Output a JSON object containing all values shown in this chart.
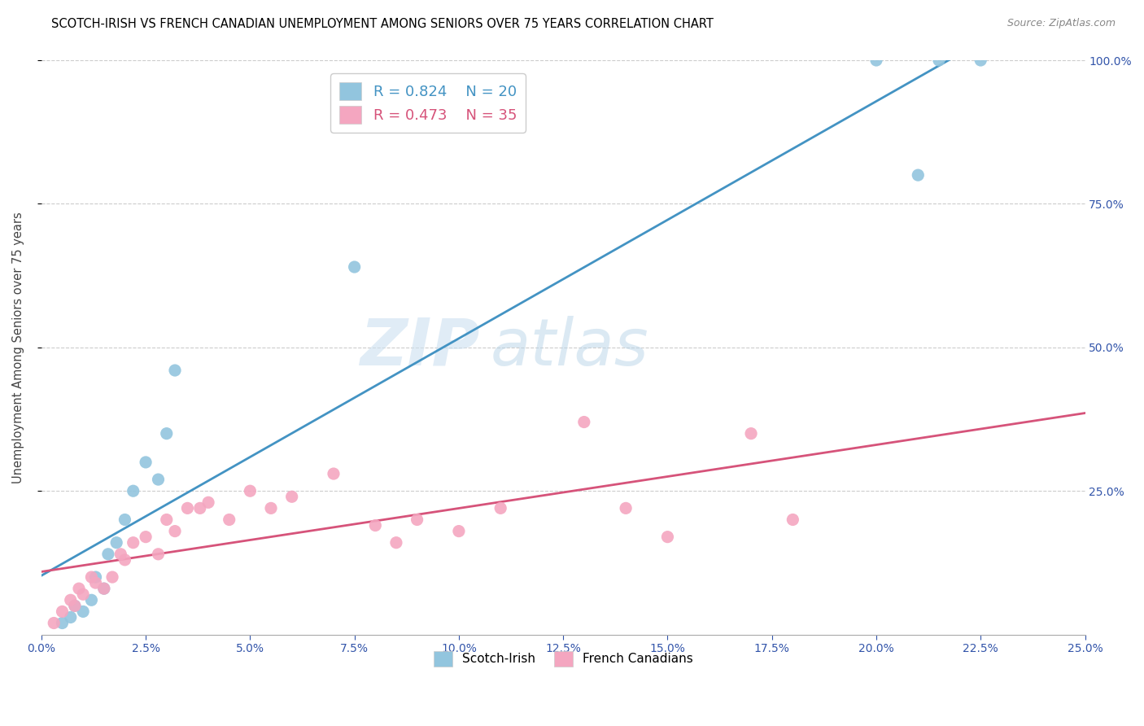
{
  "title": "SCOTCH-IRISH VS FRENCH CANADIAN UNEMPLOYMENT AMONG SENIORS OVER 75 YEARS CORRELATION CHART",
  "source": "Source: ZipAtlas.com",
  "ylabel": "Unemployment Among Seniors over 75 years",
  "series1_label": "Scotch-Irish",
  "series2_label": "French Canadians",
  "r1": 0.824,
  "n1": 20,
  "r2": 0.473,
  "n2": 35,
  "color1": "#92c5de",
  "color2": "#f4a6c0",
  "line_color1": "#4393c3",
  "line_color2": "#d6537a",
  "watermark_zip": "ZIP",
  "watermark_atlas": "atlas",
  "scotch_irish_x": [
    0.5,
    0.7,
    0.8,
    1.0,
    1.2,
    1.3,
    1.5,
    1.6,
    1.8,
    2.0,
    2.2,
    2.5,
    2.8,
    3.0,
    3.2,
    7.5,
    20.0,
    21.5,
    21.0,
    22.5
  ],
  "scotch_irish_y": [
    2.0,
    3.0,
    5.0,
    4.0,
    6.0,
    10.0,
    8.0,
    14.0,
    16.0,
    20.0,
    25.0,
    30.0,
    27.0,
    35.0,
    46.0,
    64.0,
    100.0,
    100.0,
    80.0,
    100.0
  ],
  "french_canadian_x": [
    0.3,
    0.5,
    0.7,
    0.8,
    0.9,
    1.0,
    1.2,
    1.3,
    1.5,
    1.7,
    1.9,
    2.0,
    2.2,
    2.5,
    2.8,
    3.0,
    3.2,
    3.5,
    3.8,
    4.0,
    4.5,
    5.0,
    5.5,
    6.0,
    7.0,
    8.0,
    8.5,
    9.0,
    10.0,
    11.0,
    13.0,
    14.0,
    15.0,
    17.0,
    18.0
  ],
  "french_canadian_y": [
    2.0,
    4.0,
    6.0,
    5.0,
    8.0,
    7.0,
    10.0,
    9.0,
    8.0,
    10.0,
    14.0,
    13.0,
    16.0,
    17.0,
    14.0,
    20.0,
    18.0,
    22.0,
    22.0,
    23.0,
    20.0,
    25.0,
    22.0,
    24.0,
    28.0,
    19.0,
    16.0,
    20.0,
    18.0,
    22.0,
    37.0,
    22.0,
    17.0,
    35.0,
    20.0
  ]
}
